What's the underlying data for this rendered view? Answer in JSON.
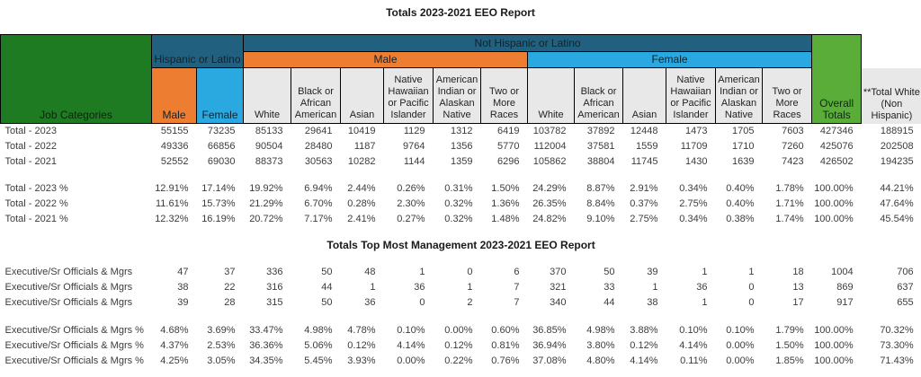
{
  "title1": "Totals 2023-2021 EEO Report",
  "title2": "Totals Top Most Management 2023-2021 EEO Report",
  "colors": {
    "dark_green": "#1E7B22",
    "bright_green": "#5BAD3A",
    "teal": "#21607E",
    "orange": "#ED7D31",
    "light_blue": "#29A9E0",
    "gray_header": "#E8E8E8"
  },
  "header": {
    "job_categories": "Job Categories",
    "hispanic": "Hispanic or Latino",
    "not_hispanic": "Not Hispanic or Latino",
    "hispanic_male": "Male",
    "hispanic_female": "Female",
    "male_group": "Male",
    "female_group": "Female",
    "races": [
      "White",
      "Black or African American",
      "Asian",
      "Native Hawaiian or Pacific Islander",
      "American Indian or Alaskan Native",
      "Two or More Races"
    ],
    "overall": "Overall Totals",
    "total_white": "**Total White (Non Hispanic)"
  },
  "rows_section1_counts": [
    {
      "label": "Total - 2023",
      "values": [
        "55155",
        "73235",
        "85133",
        "29641",
        "10419",
        "1129",
        "1312",
        "6419",
        "103782",
        "37892",
        "12448",
        "1473",
        "1705",
        "7603",
        "427346",
        "188915"
      ]
    },
    {
      "label": "Total - 2022",
      "values": [
        "49336",
        "66856",
        "90504",
        "28480",
        "1187",
        "9764",
        "1356",
        "5770",
        "112004",
        "37581",
        "1559",
        "11709",
        "1710",
        "7260",
        "425076",
        "202508"
      ]
    },
    {
      "label": "Total - 2021",
      "values": [
        "52552",
        "69030",
        "88373",
        "30563",
        "10282",
        "1144",
        "1359",
        "6296",
        "105862",
        "38804",
        "11745",
        "1430",
        "1639",
        "7423",
        "426502",
        "194235"
      ]
    }
  ],
  "rows_section1_pcts": [
    {
      "label": "Total - 2023 %",
      "values": [
        "12.91%",
        "17.14%",
        "19.92%",
        "6.94%",
        "2.44%",
        "0.26%",
        "0.31%",
        "1.50%",
        "24.29%",
        "8.87%",
        "2.91%",
        "0.34%",
        "0.40%",
        "1.78%",
        "100.00%",
        "44.21%"
      ]
    },
    {
      "label": "Total - 2022 %",
      "values": [
        "11.61%",
        "15.73%",
        "21.29%",
        "6.70%",
        "0.28%",
        "2.30%",
        "0.32%",
        "1.36%",
        "26.35%",
        "8.84%",
        "0.37%",
        "2.75%",
        "0.40%",
        "1.71%",
        "100.00%",
        "47.64%"
      ]
    },
    {
      "label": "Total - 2021 %",
      "values": [
        "12.32%",
        "16.19%",
        "20.72%",
        "7.17%",
        "2.41%",
        "0.27%",
        "0.32%",
        "1.48%",
        "24.82%",
        "9.10%",
        "2.75%",
        "0.34%",
        "0.38%",
        "1.74%",
        "100.00%",
        "45.54%"
      ]
    }
  ],
  "rows_section2_counts": [
    {
      "label": "Executive/Sr Officials & Mgrs",
      "values": [
        "47",
        "37",
        "336",
        "50",
        "48",
        "1",
        "0",
        "6",
        "370",
        "50",
        "39",
        "1",
        "1",
        "18",
        "1004",
        "706"
      ]
    },
    {
      "label": "Executive/Sr Officials & Mgrs",
      "values": [
        "38",
        "22",
        "316",
        "44",
        "1",
        "36",
        "1",
        "7",
        "321",
        "33",
        "1",
        "36",
        "0",
        "13",
        "869",
        "637"
      ]
    },
    {
      "label": "Executive/Sr Officials & Mgrs",
      "values": [
        "39",
        "28",
        "315",
        "50",
        "36",
        "0",
        "2",
        "7",
        "340",
        "44",
        "38",
        "1",
        "0",
        "17",
        "917",
        "655"
      ]
    }
  ],
  "rows_section2_pcts": [
    {
      "label": "Executive/Sr Officials & Mgrs %",
      "values": [
        "4.68%",
        "3.69%",
        "33.47%",
        "4.98%",
        "4.78%",
        "0.10%",
        "0.00%",
        "0.60%",
        "36.85%",
        "4.98%",
        "3.88%",
        "0.10%",
        "0.10%",
        "1.79%",
        "100.00%",
        "70.32%"
      ]
    },
    {
      "label": "Executive/Sr Officials & Mgrs %",
      "values": [
        "4.37%",
        "2.53%",
        "36.36%",
        "5.06%",
        "0.12%",
        "4.14%",
        "0.12%",
        "0.81%",
        "36.94%",
        "3.80%",
        "0.12%",
        "4.14%",
        "0.00%",
        "1.50%",
        "100.00%",
        "73.30%"
      ]
    },
    {
      "label": "Executive/Sr Officials & Mgrs %",
      "values": [
        "4.25%",
        "3.05%",
        "34.35%",
        "5.45%",
        "3.93%",
        "0.00%",
        "0.22%",
        "0.76%",
        "37.08%",
        "4.80%",
        "4.14%",
        "0.11%",
        "0.00%",
        "1.85%",
        "100.00%",
        "71.43%"
      ]
    }
  ]
}
